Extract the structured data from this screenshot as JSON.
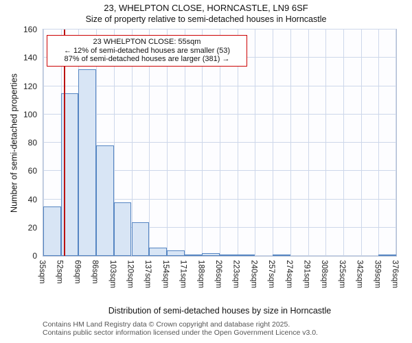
{
  "chart_data": {
    "type": "bar",
    "title": "23, WHELPTON CLOSE, HORNCASTLE, LN9 6SF",
    "subtitle": "Size of property relative to semi-detached houses in Horncastle",
    "xlabel": "Distribution of semi-detached houses by size in Horncastle",
    "ylabel": "Number of semi-detached properties",
    "categories": [
      "35sqm",
      "52sqm",
      "69sqm",
      "86sqm",
      "103sqm",
      "120sqm",
      "137sqm",
      "154sqm",
      "171sqm",
      "188sqm",
      "206sqm",
      "223sqm",
      "240sqm",
      "257sqm",
      "274sqm",
      "291sqm",
      "308sqm",
      "325sqm",
      "342sqm",
      "359sqm",
      "376sqm"
    ],
    "values": [
      35,
      115,
      132,
      78,
      38,
      24,
      6,
      4,
      1,
      2,
      1,
      1,
      0,
      1,
      0,
      0,
      0,
      0,
      0,
      1
    ],
    "ylim": [
      0,
      160
    ],
    "yticks": [
      0,
      20,
      40,
      60,
      80,
      100,
      120,
      140,
      160
    ],
    "grid": true,
    "legend": "none",
    "bar_color": "#d8e5f5",
    "bar_border_color": "#5585c2",
    "marker": {
      "value_sqm": 55,
      "color": "#bb1111"
    },
    "annotation": {
      "line1": "23 WHELPTON CLOSE: 55sqm",
      "line2": "← 12% of semi-detached houses are smaller (53)",
      "line3": "87% of semi-detached houses are larger (381) →",
      "border_color": "#cc0000"
    }
  },
  "footer": {
    "line1": "Contains HM Land Registry data © Crown copyright and database right 2025.",
    "line2": "Contains public sector information licensed under the Open Government Licence v3.0."
  }
}
